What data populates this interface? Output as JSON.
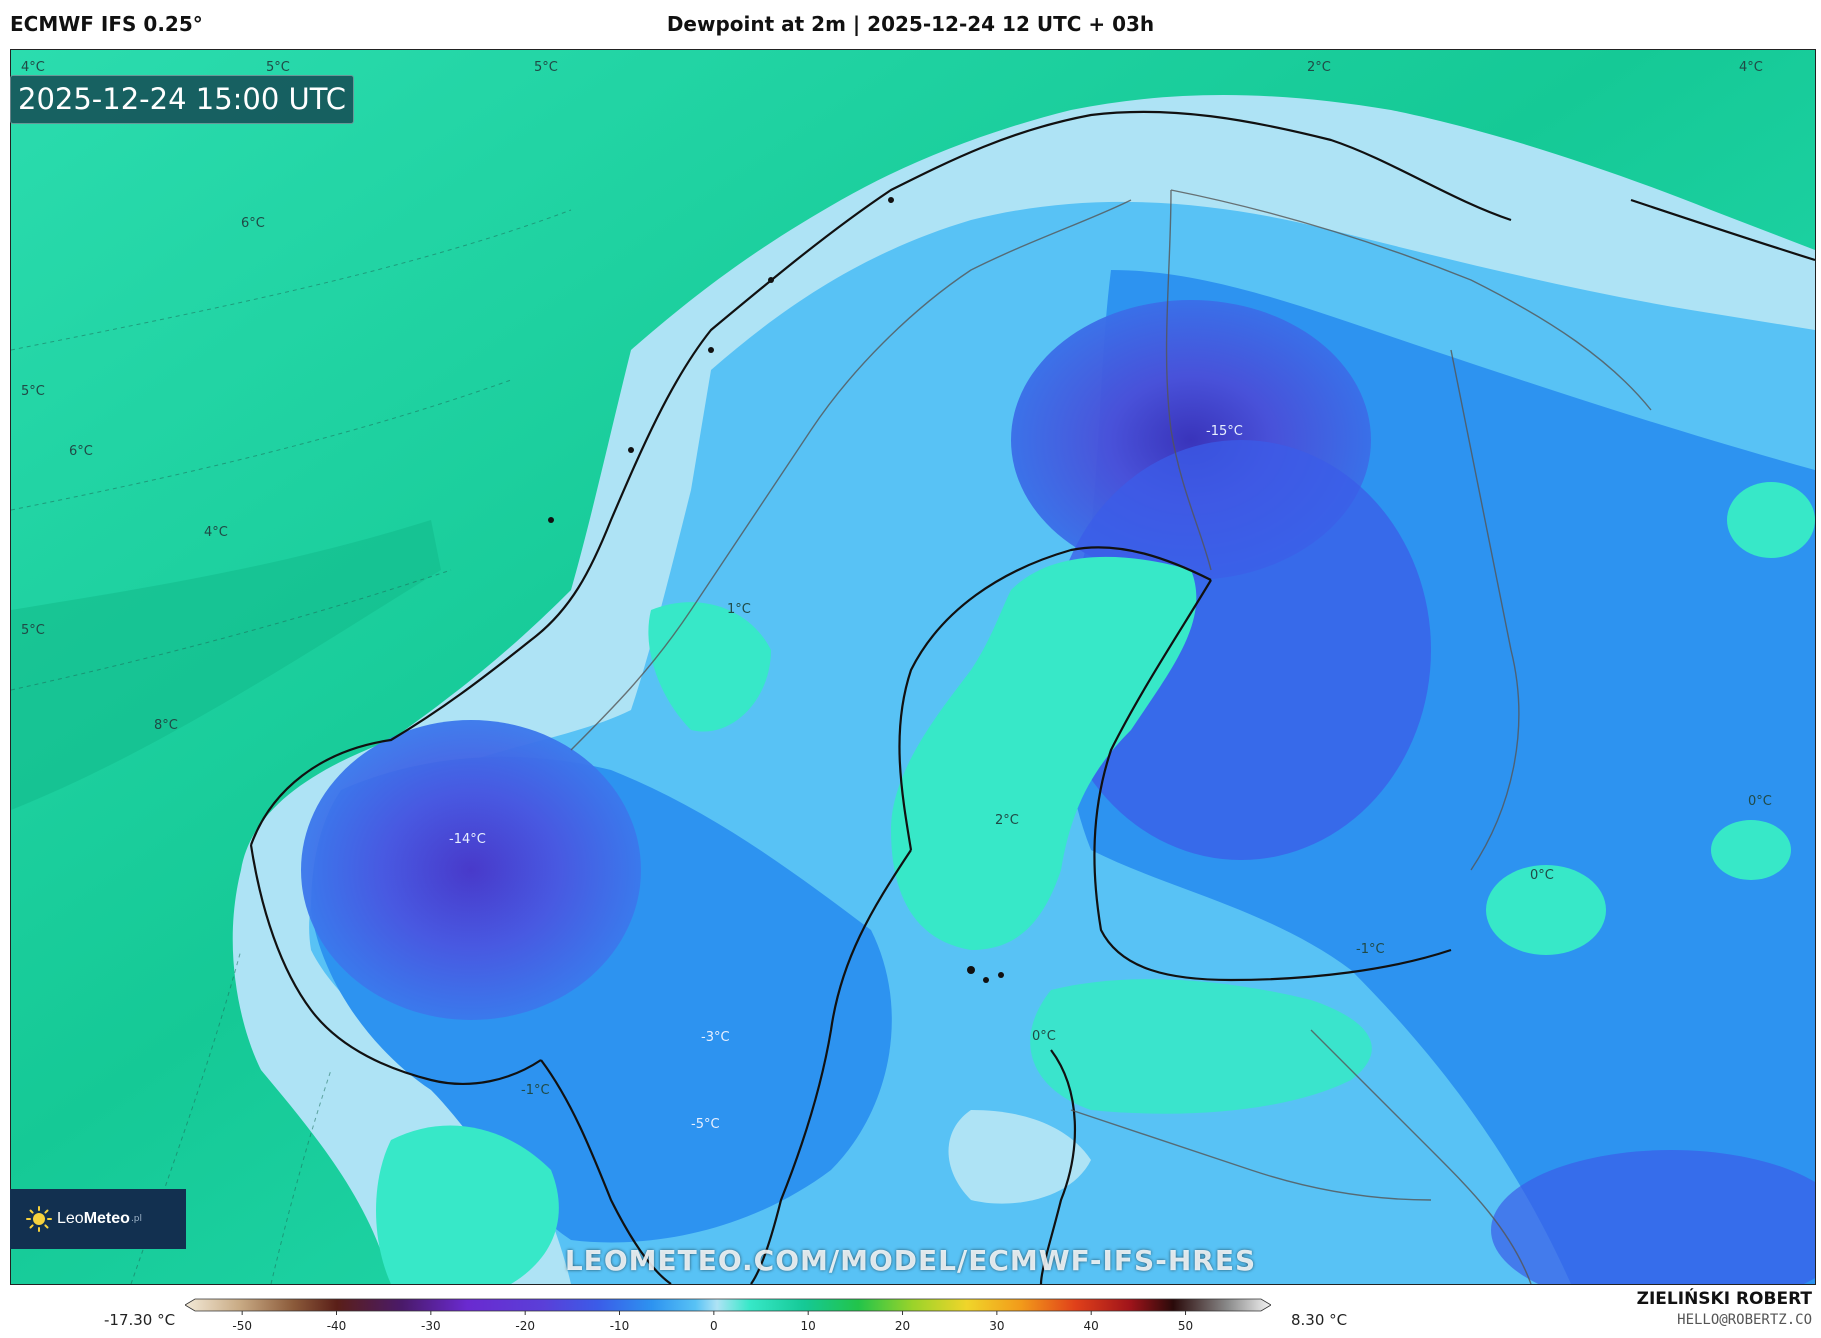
{
  "header": {
    "model": "ECMWF IFS 0.25°",
    "title": "Dewpoint at 2m | 2025-12-24 12 UTC + 03h"
  },
  "valid_time": "2025-12-24 15:00 UTC",
  "labels": {
    "l1": "4°C",
    "l2": "5°C",
    "l3": "5°C",
    "l4": "4°C",
    "l5": "2°C",
    "l6": "6°C",
    "l7": "5°C",
    "l8": "6°C",
    "l9": "4°C",
    "l10": "5°C",
    "l11": "8°C",
    "l12": "1°C",
    "l13": "-15°C",
    "l14": "-14°C",
    "l15": "2°C",
    "l16": "0°C",
    "l17": "0°C",
    "l18": "-1°C",
    "l19": "0°C",
    "l20": "-3°C",
    "l21": "-1°C",
    "l22": "-5°C"
  },
  "logo": {
    "name_a": "Leo",
    "name_b": "Meteo",
    "tld": ".pl"
  },
  "watermark": "LEOMETEO.COM/MODEL/ECMWF-IFS-HRES",
  "colorbar": {
    "min_label": "-17.30 °C",
    "max_label": "8.30 °C",
    "ticks": [
      "-50",
      "-40",
      "-30",
      "-20",
      "-10",
      "0",
      "10",
      "20",
      "30",
      "40",
      "50"
    ],
    "range": [
      -55,
      58
    ]
  },
  "author": {
    "name": "ZIELIŃSKI ROBERT",
    "email": "HELLO@ROBERTZ.CO"
  },
  "colors": {
    "sea_warm": "#1fd4a5",
    "sea_cool": "#37e8c8",
    "pale_blue": "#aee3f5",
    "light_blue": "#58c2f5",
    "mid_blue": "#2d93f0",
    "deep_blue": "#3b5ce8",
    "violet": "#5a3fd8"
  }
}
